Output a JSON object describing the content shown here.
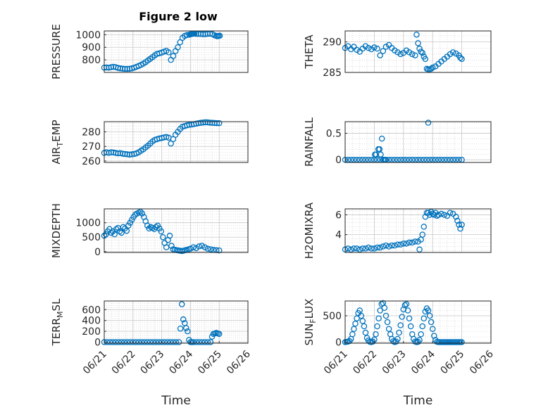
{
  "figure": {
    "title": "Figure 2 low"
  },
  "colors": {
    "marker": "#0072BD",
    "axis": "#262626",
    "grid": "#c8c8c8"
  },
  "chart_data": [
    {
      "id": "pressure",
      "type": "scatter",
      "title": "Figure 2 low",
      "ylabel": "PRESSURE",
      "ylim": [
        700,
        1030
      ],
      "yticks": [
        800,
        900,
        1000
      ],
      "ytick_labels": [
        "800",
        "900",
        "1000"
      ],
      "xlim": [
        0,
        5
      ],
      "xticks": [],
      "x": [
        0,
        0.08,
        0.16,
        0.24,
        0.32,
        0.4,
        0.48,
        0.56,
        0.64,
        0.72,
        0.8,
        0.88,
        0.96,
        1.04,
        1.12,
        1.2,
        1.28,
        1.36,
        1.44,
        1.52,
        1.6,
        1.68,
        1.76,
        1.84,
        1.92,
        2.0,
        2.08,
        2.16,
        2.24,
        2.32,
        2.4,
        2.48,
        2.56,
        2.64,
        2.72,
        2.8,
        2.88,
        2.96,
        3.0,
        3.02,
        3.04,
        3.06,
        3.08,
        3.1,
        3.14,
        3.2,
        3.28,
        3.36,
        3.44,
        3.52,
        3.6,
        3.68,
        3.76,
        3.84,
        3.9,
        3.94,
        3.98,
        4.02
      ],
      "y": [
        738,
        740,
        738,
        742,
        745,
        742,
        736,
        732,
        730,
        728,
        728,
        729,
        732,
        738,
        745,
        752,
        760,
        770,
        782,
        795,
        808,
        822,
        836,
        848,
        852,
        858,
        865,
        872,
        860,
        800,
        830,
        870,
        900,
        940,
        975,
        990,
        998,
        1000,
        1003,
        1005,
        1006,
        1007,
        1008,
        1009,
        1008,
        1007,
        1006,
        1006,
        1004,
        1005,
        1007,
        1008,
        1005,
        995,
        990,
        988,
        990,
        992
      ]
    },
    {
      "id": "theta",
      "type": "scatter",
      "ylabel": "THETA",
      "ylim": [
        285,
        291.8
      ],
      "yticks": [
        285,
        290
      ],
      "ytick_labels": [
        "285",
        "290"
      ],
      "xlim": [
        0,
        5
      ],
      "xticks": [],
      "x": [
        0,
        0.1,
        0.2,
        0.3,
        0.4,
        0.5,
        0.6,
        0.7,
        0.8,
        0.9,
        1.0,
        1.1,
        1.2,
        1.3,
        1.4,
        1.5,
        1.6,
        1.7,
        1.8,
        1.9,
        2.0,
        2.1,
        2.2,
        2.3,
        2.4,
        2.45,
        2.5,
        2.55,
        2.6,
        2.65,
        2.7,
        2.75,
        2.8,
        2.85,
        2.9,
        2.95,
        3.0,
        3.1,
        3.2,
        3.3,
        3.4,
        3.5,
        3.6,
        3.7,
        3.8,
        3.9,
        3.95,
        4.0
      ],
      "y": [
        289.0,
        289.3,
        288.8,
        289.2,
        288.7,
        288.4,
        288.9,
        289.3,
        289.0,
        288.8,
        289.1,
        288.9,
        287.8,
        288.5,
        289.2,
        289.5,
        289.0,
        288.6,
        288.3,
        288.0,
        288.2,
        288.6,
        288.3,
        288.0,
        287.8,
        291.2,
        289.8,
        288.9,
        288.4,
        288.2,
        287.6,
        287.2,
        285.6,
        285.5,
        285.5,
        285.6,
        285.8,
        286.0,
        286.4,
        286.8,
        287.2,
        287.6,
        288.0,
        288.3,
        288.1,
        287.8,
        287.4,
        287.2
      ]
    },
    {
      "id": "air_temp",
      "type": "scatter",
      "ylabel": "AIR",
      "ylabel_sub": "T",
      "ylabel_rest": "EMP",
      "ylim": [
        259,
        287
      ],
      "yticks": [
        260,
        270,
        280
      ],
      "ytick_labels": [
        "260",
        "270",
        "280"
      ],
      "xlim": [
        0,
        5
      ],
      "xticks": [],
      "x": [
        0,
        0.08,
        0.16,
        0.24,
        0.32,
        0.4,
        0.48,
        0.56,
        0.64,
        0.72,
        0.8,
        0.88,
        0.96,
        1.04,
        1.12,
        1.2,
        1.28,
        1.36,
        1.44,
        1.52,
        1.6,
        1.68,
        1.76,
        1.84,
        1.92,
        2.0,
        2.08,
        2.16,
        2.24,
        2.32,
        2.4,
        2.48,
        2.56,
        2.64,
        2.72,
        2.8,
        2.88,
        2.96,
        3.04,
        3.12,
        3.2,
        3.28,
        3.36,
        3.44,
        3.52,
        3.6,
        3.68,
        3.76,
        3.84,
        3.92,
        4.0
      ],
      "y": [
        265.5,
        266,
        265.5,
        266,
        265.8,
        265.5,
        265.2,
        265.4,
        265,
        264.8,
        264.6,
        264.4,
        264.6,
        264.8,
        265.2,
        266,
        267,
        268,
        269.3,
        270.5,
        272,
        273.4,
        274.5,
        275,
        275.5,
        275.8,
        276.2,
        276.5,
        276,
        272,
        275,
        278,
        280,
        282,
        283.5,
        284,
        284.5,
        284.8,
        285,
        285.3,
        285.6,
        286,
        286.2,
        286.4,
        286.6,
        286.5,
        286.3,
        286.2,
        286.1,
        286,
        286
      ]
    },
    {
      "id": "rainfall",
      "type": "scatter",
      "ylabel": "RAINFALL",
      "ylim": [
        -0.05,
        0.72
      ],
      "yticks": [
        0,
        0.5
      ],
      "ytick_labels": [
        "0",
        "0.5"
      ],
      "xlim": [
        0,
        5
      ],
      "xticks": [],
      "x": [
        0,
        0.1,
        0.2,
        0.3,
        0.4,
        0.5,
        0.6,
        0.7,
        0.8,
        0.9,
        1.0,
        1.02,
        1.06,
        1.1,
        1.14,
        1.18,
        1.2,
        1.22,
        1.26,
        1.3,
        1.34,
        1.38,
        1.4,
        1.5,
        1.6,
        1.7,
        1.8,
        1.9,
        2.0,
        2.1,
        2.2,
        2.3,
        2.4,
        2.5,
        2.6,
        2.7,
        2.8,
        2.85,
        2.9,
        3.0,
        3.1,
        3.2,
        3.3,
        3.4,
        3.5,
        3.6,
        3.7,
        3.8,
        3.9,
        4.0
      ],
      "y": [
        0,
        0,
        0,
        0,
        0,
        0,
        0,
        0,
        0,
        0,
        0,
        0.1,
        0.1,
        0,
        0.2,
        0.2,
        0,
        0.1,
        0.4,
        0,
        0,
        0,
        0,
        0,
        0,
        0,
        0,
        0,
        0,
        0,
        0,
        0,
        0,
        0,
        0,
        0,
        0,
        0.7,
        0,
        0,
        0,
        0,
        0,
        0,
        0,
        0,
        0,
        0,
        0,
        0
      ]
    },
    {
      "id": "mixdepth",
      "type": "scatter",
      "ylabel": "MIXDEPTH",
      "ylim": [
        -30,
        1480
      ],
      "yticks": [
        0,
        500,
        1000
      ],
      "ytick_labels": [
        "0",
        "500",
        "1000"
      ],
      "xlim": [
        0,
        5
      ],
      "xticks": [],
      "x": [
        0,
        0.06,
        0.12,
        0.18,
        0.24,
        0.3,
        0.36,
        0.42,
        0.48,
        0.54,
        0.6,
        0.66,
        0.72,
        0.78,
        0.84,
        0.9,
        0.96,
        1.02,
        1.08,
        1.14,
        1.2,
        1.26,
        1.32,
        1.38,
        1.44,
        1.5,
        1.56,
        1.62,
        1.68,
        1.74,
        1.8,
        1.86,
        1.92,
        1.98,
        2.04,
        2.1,
        2.16,
        2.22,
        2.28,
        2.34,
        2.4,
        2.46,
        2.52,
        2.58,
        2.64,
        2.7,
        2.76,
        2.82,
        2.88,
        2.94,
        3.0,
        3.1,
        3.2,
        3.3,
        3.4,
        3.5,
        3.6,
        3.7,
        3.8,
        3.9,
        4.0
      ],
      "y": [
        550,
        600,
        700,
        780,
        650,
        700,
        600,
        780,
        820,
        700,
        650,
        850,
        800,
        720,
        900,
        1000,
        1100,
        1200,
        1280,
        1320,
        1350,
        1380,
        1320,
        1200,
        1050,
        900,
        800,
        850,
        820,
        780,
        850,
        900,
        800,
        700,
        500,
        300,
        150,
        400,
        550,
        200,
        80,
        60,
        50,
        40,
        30,
        20,
        30,
        50,
        60,
        80,
        100,
        150,
        120,
        180,
        200,
        150,
        100,
        80,
        60,
        50,
        40
      ]
    },
    {
      "id": "h2omixra",
      "type": "scatter",
      "ylabel": "H2OMIXRA",
      "ylim": [
        2.2,
        6.6
      ],
      "yticks": [
        4,
        6
      ],
      "ytick_labels": [
        "4",
        "6"
      ],
      "xlim": [
        0,
        5
      ],
      "xticks": [],
      "x": [
        0,
        0.1,
        0.2,
        0.3,
        0.4,
        0.5,
        0.6,
        0.7,
        0.8,
        0.9,
        1.0,
        1.1,
        1.2,
        1.3,
        1.4,
        1.5,
        1.6,
        1.7,
        1.8,
        1.9,
        2.0,
        2.1,
        2.2,
        2.3,
        2.4,
        2.5,
        2.55,
        2.6,
        2.65,
        2.7,
        2.75,
        2.8,
        2.85,
        2.9,
        2.95,
        3.0,
        3.05,
        3.1,
        3.15,
        3.2,
        3.3,
        3.4,
        3.5,
        3.6,
        3.7,
        3.8,
        3.85,
        3.9,
        3.95,
        4.0
      ],
      "y": [
        2.5,
        2.6,
        2.5,
        2.6,
        2.6,
        2.5,
        2.6,
        2.6,
        2.7,
        2.6,
        2.6,
        2.7,
        2.7,
        2.8,
        2.9,
        2.8,
        2.9,
        2.9,
        3.0,
        3.0,
        3.1,
        3.1,
        3.2,
        3.2,
        3.3,
        3.3,
        2.5,
        3.5,
        4.0,
        4.8,
        5.8,
        6.2,
        6.2,
        6.0,
        6.3,
        6.1,
        6.0,
        6.2,
        5.9,
        6.0,
        6.1,
        6.0,
        5.9,
        6.2,
        6.1,
        5.8,
        5.4,
        5.0,
        4.6,
        5.0
      ]
    },
    {
      "id": "terr_msl",
      "type": "scatter",
      "ylabel": "TERR",
      "ylabel_sub": "M",
      "ylabel_rest": "SL",
      "ylim": [
        -20,
        760
      ],
      "yticks": [
        0,
        200,
        400,
        600
      ],
      "ytick_labels": [
        "0",
        "200",
        "400",
        "600"
      ],
      "xlim": [
        0,
        5
      ],
      "xticks": [
        0,
        1,
        2,
        3,
        4,
        5
      ],
      "xtick_labels": [
        "06/21",
        "06/22",
        "06/23",
        "06/24",
        "06/25",
        "06/26"
      ],
      "xlabel": "Time",
      "x": [
        0,
        0.1,
        0.2,
        0.3,
        0.4,
        0.5,
        0.6,
        0.7,
        0.8,
        0.9,
        1.0,
        1.1,
        1.2,
        1.3,
        1.4,
        1.5,
        1.6,
        1.7,
        1.8,
        1.9,
        2.0,
        2.1,
        2.2,
        2.3,
        2.4,
        2.5,
        2.6,
        2.65,
        2.7,
        2.75,
        2.8,
        2.85,
        2.9,
        2.95,
        3.0,
        3.05,
        3.1,
        3.2,
        3.3,
        3.4,
        3.5,
        3.6,
        3.7,
        3.75,
        3.8,
        3.85,
        3.9,
        3.95,
        4.0
      ],
      "y": [
        0,
        0,
        0,
        0,
        0,
        0,
        0,
        0,
        0,
        0,
        0,
        0,
        0,
        0,
        0,
        0,
        0,
        0,
        0,
        0,
        0,
        0,
        0,
        0,
        0,
        0,
        0,
        250,
        700,
        420,
        350,
        260,
        200,
        40,
        0,
        0,
        0,
        0,
        0,
        0,
        0,
        0,
        0,
        100,
        150,
        160,
        170,
        160,
        150
      ]
    },
    {
      "id": "sun_flux",
      "type": "scatter",
      "ylabel": "SUN",
      "ylabel_sub": "F",
      "ylabel_rest": "LUX",
      "ylim": [
        -20,
        780
      ],
      "yticks": [
        0,
        500
      ],
      "ytick_labels": [
        "0",
        "500"
      ],
      "xlim": [
        0,
        5
      ],
      "xticks": [
        0,
        1,
        2,
        3,
        4,
        5
      ],
      "xtick_labels": [
        "06/21",
        "06/22",
        "06/23",
        "06/24",
        "06/25",
        "06/26"
      ],
      "xlabel": "Time",
      "x": [
        0,
        0.05,
        0.1,
        0.15,
        0.2,
        0.25,
        0.3,
        0.35,
        0.4,
        0.45,
        0.5,
        0.55,
        0.6,
        0.65,
        0.7,
        0.75,
        0.8,
        0.85,
        0.9,
        0.95,
        1.0,
        1.05,
        1.1,
        1.15,
        1.2,
        1.25,
        1.3,
        1.35,
        1.4,
        1.45,
        1.5,
        1.55,
        1.6,
        1.65,
        1.7,
        1.75,
        1.8,
        1.85,
        1.9,
        1.95,
        2.0,
        2.05,
        2.1,
        2.15,
        2.2,
        2.25,
        2.3,
        2.35,
        2.4,
        2.45,
        2.5,
        2.55,
        2.6,
        2.65,
        2.7,
        2.75,
        2.8,
        2.85,
        2.9,
        2.95,
        3.0,
        3.05,
        3.1,
        3.15,
        3.2,
        3.25,
        3.3,
        3.35,
        3.4,
        3.45,
        3.5,
        3.55,
        3.6,
        3.65,
        3.7,
        3.75,
        3.8,
        3.85,
        3.9,
        3.95,
        4.0
      ],
      "y": [
        0,
        5,
        10,
        20,
        60,
        150,
        250,
        350,
        450,
        550,
        600,
        500,
        400,
        300,
        180,
        80,
        30,
        5,
        0,
        10,
        50,
        150,
        300,
        450,
        600,
        720,
        740,
        650,
        500,
        380,
        250,
        150,
        60,
        15,
        0,
        10,
        60,
        180,
        320,
        480,
        620,
        700,
        720,
        600,
        450,
        300,
        150,
        60,
        10,
        0,
        5,
        40,
        150,
        300,
        450,
        580,
        640,
        600,
        500,
        380,
        250,
        120,
        40,
        5,
        0,
        0,
        0,
        0,
        0,
        0,
        0,
        0,
        0,
        0,
        0,
        0,
        0,
        0,
        0,
        0,
        0
      ]
    }
  ]
}
